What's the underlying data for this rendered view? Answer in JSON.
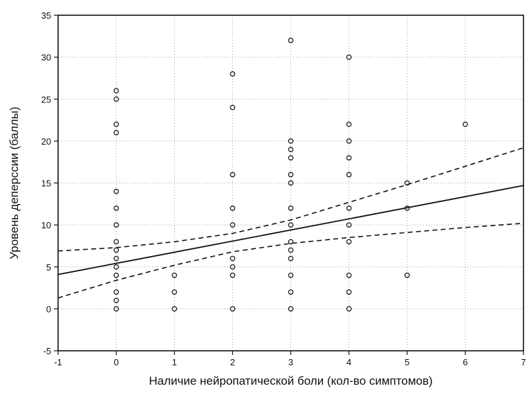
{
  "chart_data": {
    "type": "scatter",
    "title": "",
    "xlabel": "Наличие нейропатической боли (кол-во симптомов)",
    "ylabel": "Уровень деперссии (баллы)",
    "xlim": [
      -1,
      7
    ],
    "ylim": [
      -5,
      35
    ],
    "xticks": [
      -1,
      0,
      1,
      2,
      3,
      4,
      5,
      6,
      7
    ],
    "yticks": [
      -5,
      0,
      5,
      10,
      15,
      20,
      25,
      30,
      35
    ],
    "grid": true,
    "series": [
      {
        "kind": "points",
        "marker": "circle-open",
        "points": [
          [
            0,
            26
          ],
          [
            0,
            25
          ],
          [
            0,
            22
          ],
          [
            0,
            21
          ],
          [
            0,
            14
          ],
          [
            0,
            12
          ],
          [
            0,
            10
          ],
          [
            0,
            8
          ],
          [
            0,
            7
          ],
          [
            0,
            6
          ],
          [
            0,
            5
          ],
          [
            0,
            4
          ],
          [
            0,
            2
          ],
          [
            0,
            1
          ],
          [
            0,
            0
          ],
          [
            1,
            4
          ],
          [
            1,
            2
          ],
          [
            1,
            0
          ],
          [
            2,
            28
          ],
          [
            2,
            24
          ],
          [
            2,
            16
          ],
          [
            2,
            12
          ],
          [
            2,
            10
          ],
          [
            2,
            6
          ],
          [
            2,
            5
          ],
          [
            2,
            4
          ],
          [
            2,
            0
          ],
          [
            3,
            32
          ],
          [
            3,
            20
          ],
          [
            3,
            19
          ],
          [
            3,
            18
          ],
          [
            3,
            16
          ],
          [
            3,
            15
          ],
          [
            3,
            12
          ],
          [
            3,
            10
          ],
          [
            3,
            8
          ],
          [
            3,
            7
          ],
          [
            3,
            6
          ],
          [
            3,
            4
          ],
          [
            3,
            2
          ],
          [
            3,
            0
          ],
          [
            4,
            30
          ],
          [
            4,
            22
          ],
          [
            4,
            20
          ],
          [
            4,
            18
          ],
          [
            4,
            16
          ],
          [
            4,
            12
          ],
          [
            4,
            10
          ],
          [
            4,
            8
          ],
          [
            4,
            4
          ],
          [
            4,
            2
          ],
          [
            4,
            0
          ],
          [
            5,
            15
          ],
          [
            5,
            12
          ],
          [
            5,
            4
          ],
          [
            6,
            22
          ]
        ]
      },
      {
        "kind": "fit",
        "style": "solid",
        "x": [
          -1,
          7
        ],
        "y": [
          4.1,
          14.7
        ]
      },
      {
        "kind": "ci-upper",
        "style": "dashed",
        "x": [
          -1,
          0,
          1,
          2,
          3,
          4,
          5,
          6,
          7
        ],
        "y": [
          6.9,
          7.3,
          8.0,
          9.0,
          10.6,
          12.7,
          14.8,
          17.0,
          19.2
        ]
      },
      {
        "kind": "ci-lower",
        "style": "dashed",
        "x": [
          -1,
          0,
          1,
          2,
          3,
          4,
          5,
          6,
          7
        ],
        "y": [
          1.3,
          3.4,
          5.2,
          6.8,
          7.8,
          8.5,
          9.1,
          9.7,
          10.2
        ]
      }
    ]
  }
}
